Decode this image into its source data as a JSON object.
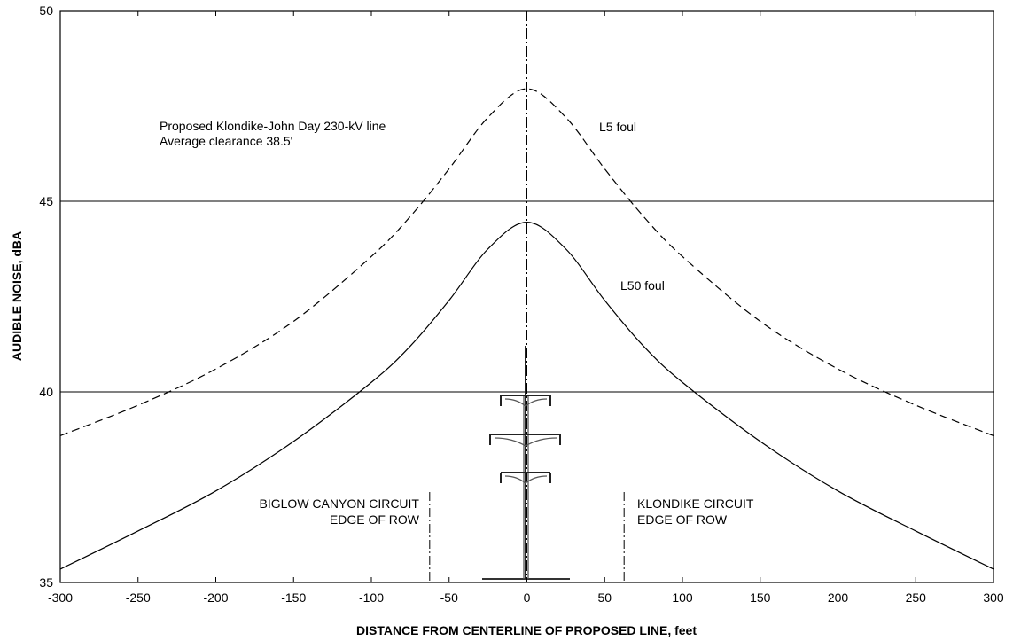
{
  "chart_data": {
    "type": "line",
    "xlabel": "DISTANCE FROM CENTERLINE OF PROPOSED LINE, feet",
    "ylabel": "AUDIBLE NOISE, dBA",
    "xlim": [
      -300,
      300
    ],
    "ylim": [
      35,
      50
    ],
    "x_ticks": [
      "-300",
      "-250",
      "-200",
      "-150",
      "-100",
      "-50",
      "0",
      "50",
      "100",
      "150",
      "200",
      "250",
      "300"
    ],
    "y_ticks": [
      "35",
      "40",
      "45",
      "50"
    ],
    "grid": "horizontal lines at 40 and 45 dBA",
    "series": [
      {
        "name": "L5 foul",
        "style": "dashed",
        "x": [
          -300,
          -250,
          -200,
          -150,
          -100,
          -75,
          -50,
          -25,
          0,
          25,
          50,
          75,
          100,
          150,
          200,
          250,
          300
        ],
        "y": [
          38.85,
          39.65,
          40.6,
          41.85,
          43.55,
          44.6,
          45.85,
          47.2,
          47.95,
          47.2,
          45.85,
          44.6,
          43.55,
          41.85,
          40.6,
          39.65,
          38.85
        ]
      },
      {
        "name": "L50 foul",
        "style": "solid",
        "x": [
          -300,
          -250,
          -200,
          -150,
          -100,
          -75,
          -50,
          -25,
          0,
          25,
          50,
          75,
          100,
          150,
          200,
          250,
          300
        ],
        "y": [
          35.35,
          36.35,
          37.4,
          38.7,
          40.25,
          41.2,
          42.4,
          43.75,
          44.45,
          43.75,
          42.4,
          41.2,
          40.25,
          38.7,
          37.4,
          36.35,
          35.35
        ]
      }
    ],
    "reference_lines": {
      "horizontal": [
        40,
        45
      ],
      "centerline_x": 0,
      "edge_of_row_x": [
        -62.5,
        62.5
      ]
    },
    "annotations": {
      "line_desc_1": "Proposed Klondike-John Day 230-kV line",
      "line_desc_2": "Average clearance 38.5'",
      "l5_label": "L5 foul",
      "l50_label": "L50 foul",
      "left_row_1": "BIGLOW CANYON CIRCUIT",
      "left_row_2": "EDGE OF ROW",
      "right_row_1": "KLONDIKE CIRCUIT",
      "right_row_2": "EDGE OF ROW"
    },
    "colors": {
      "line": "#000000",
      "frame": "#000000",
      "tower": "#555555"
    }
  }
}
